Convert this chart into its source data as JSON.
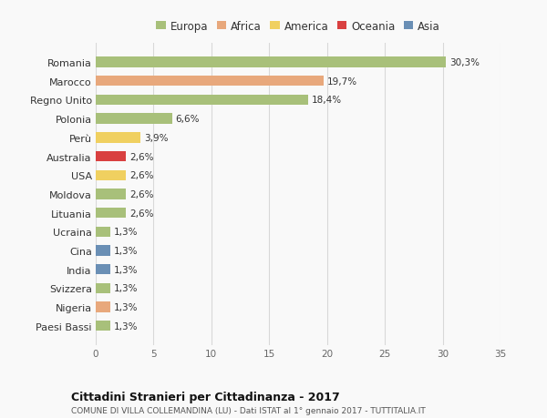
{
  "countries": [
    "Romania",
    "Marocco",
    "Regno Unito",
    "Polonia",
    "Perù",
    "Australia",
    "USA",
    "Moldova",
    "Lituania",
    "Ucraina",
    "Cina",
    "India",
    "Svizzera",
    "Nigeria",
    "Paesi Bassi"
  ],
  "values": [
    30.3,
    19.7,
    18.4,
    6.6,
    3.9,
    2.6,
    2.6,
    2.6,
    2.6,
    1.3,
    1.3,
    1.3,
    1.3,
    1.3,
    1.3
  ],
  "labels": [
    "30,3%",
    "19,7%",
    "18,4%",
    "6,6%",
    "3,9%",
    "2,6%",
    "2,6%",
    "2,6%",
    "2,6%",
    "1,3%",
    "1,3%",
    "1,3%",
    "1,3%",
    "1,3%",
    "1,3%"
  ],
  "colors": [
    "#a8c07a",
    "#e8a87c",
    "#a8c07a",
    "#a8c07a",
    "#f0d060",
    "#d94040",
    "#f0d060",
    "#a8c07a",
    "#a8c07a",
    "#a8c07a",
    "#6a8fb5",
    "#6a8fb5",
    "#a8c07a",
    "#e8a87c",
    "#a8c07a"
  ],
  "legend": {
    "Europa": "#a8c07a",
    "Africa": "#e8a87c",
    "America": "#f0d060",
    "Oceania": "#d94040",
    "Asia": "#6a8fb5"
  },
  "title": "Cittadini Stranieri per Cittadinanza - 2017",
  "subtitle": "COMUNE DI VILLA COLLEMANDINA (LU) - Dati ISTAT al 1° gennaio 2017 - TUTTITALIA.IT",
  "xlim": [
    0,
    35
  ],
  "xticks": [
    0,
    5,
    10,
    15,
    20,
    25,
    30,
    35
  ],
  "background_color": "#f9f9f9",
  "grid_color": "#d8d8d8",
  "bar_height": 0.55,
  "label_fontsize": 7.5,
  "ytick_fontsize": 8.0,
  "xtick_fontsize": 7.5
}
